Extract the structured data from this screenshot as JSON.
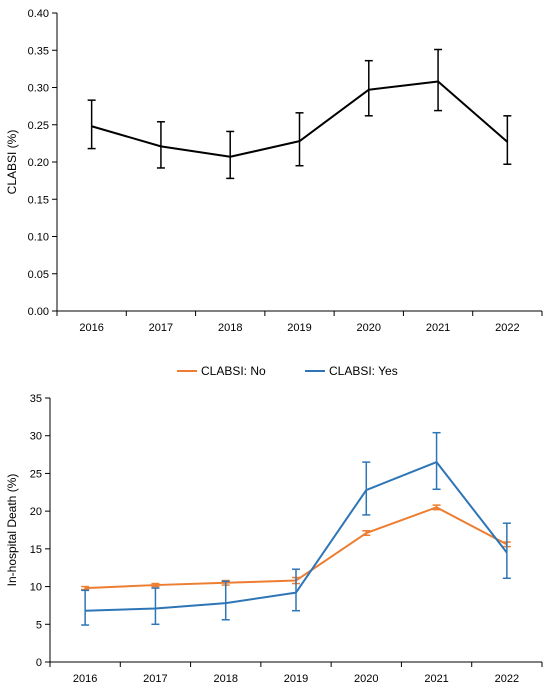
{
  "colors": {
    "axis": "#000000",
    "series_no": "#ED7D31",
    "series_yes": "#2E75B6",
    "series_top": "#000000"
  },
  "chart_data": [
    {
      "type": "line",
      "title": "",
      "xlabel": "",
      "ylabel": "CLABSI (%)",
      "categories": [
        "2016",
        "2017",
        "2018",
        "2019",
        "2020",
        "2021",
        "2022"
      ],
      "ylim": [
        0,
        0.4
      ],
      "yticks": [
        "0.00",
        "0.05",
        "0.10",
        "0.15",
        "0.20",
        "0.25",
        "0.30",
        "0.35",
        "0.40"
      ],
      "grid": false,
      "legend": "none",
      "series": [
        {
          "values": [
            0.248,
            0.221,
            0.207,
            0.228,
            0.297,
            0.308,
            0.227
          ],
          "err_low": [
            0.218,
            0.192,
            0.178,
            0.195,
            0.262,
            0.269,
            0.197
          ],
          "err_high": [
            0.283,
            0.254,
            0.241,
            0.266,
            0.336,
            0.351,
            0.262
          ]
        }
      ]
    },
    {
      "type": "line",
      "title": "",
      "xlabel": "",
      "ylabel": "In-hospital Death (%)",
      "categories": [
        "2016",
        "2017",
        "2018",
        "2019",
        "2020",
        "2021",
        "2022"
      ],
      "ylim": [
        0,
        35
      ],
      "yticks": [
        "0",
        "5",
        "10",
        "15",
        "20",
        "25",
        "30",
        "35"
      ],
      "grid": false,
      "legend": "top-center",
      "series": [
        {
          "name": "CLABSI: No",
          "values": [
            9.8,
            10.2,
            10.5,
            10.8,
            17.1,
            20.5,
            15.6
          ],
          "err_low": [
            9.6,
            10.0,
            10.2,
            10.4,
            16.8,
            20.2,
            15.3
          ],
          "err_high": [
            10.0,
            10.4,
            10.8,
            11.2,
            17.4,
            20.8,
            15.9
          ]
        },
        {
          "name": "CLABSI: Yes",
          "values": [
            6.8,
            7.1,
            7.8,
            9.2,
            22.8,
            26.5,
            14.5
          ],
          "err_low": [
            4.9,
            5.0,
            5.6,
            6.8,
            19.5,
            22.9,
            11.1
          ],
          "err_high": [
            9.5,
            9.8,
            10.7,
            12.3,
            26.5,
            30.4,
            18.4
          ]
        }
      ]
    }
  ]
}
